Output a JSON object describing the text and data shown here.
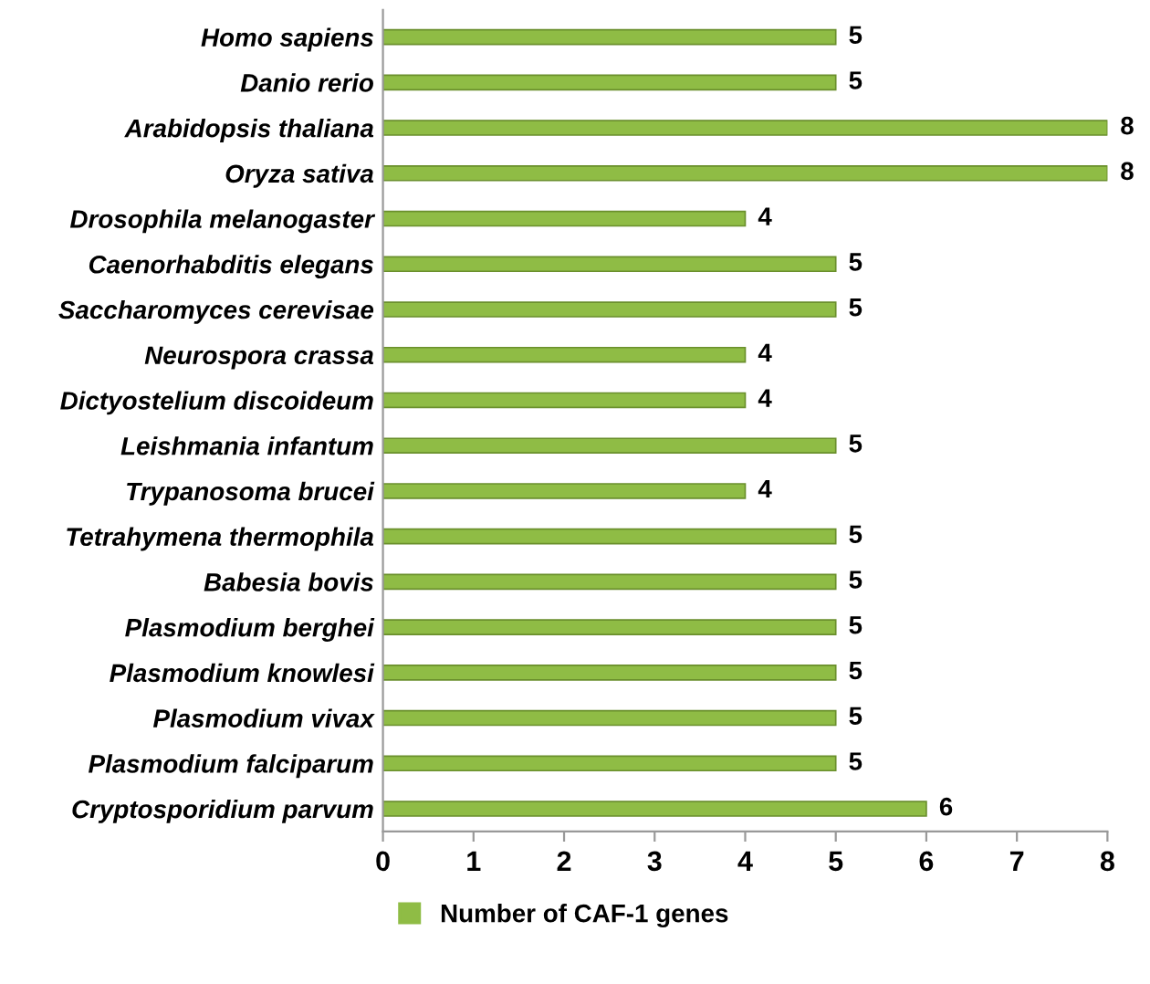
{
  "chart_data": {
    "type": "bar",
    "orientation": "horizontal",
    "categories": [
      "Homo sapiens",
      "Danio rerio",
      "Arabidopsis thaliana",
      "Oryza sativa",
      "Drosophila melanogaster",
      "Caenorhabditis elegans",
      "Saccharomyces cerevisae",
      "Neurospora crassa",
      "Dictyostelium discoideum",
      "Leishmania infantum",
      "Trypanosoma brucei",
      "Tetrahymena thermophila",
      "Babesia bovis",
      "Plasmodium berghei",
      "Plasmodium knowlesi",
      "Plasmodium vivax",
      "Plasmodium falciparum",
      "Cryptosporidium parvum"
    ],
    "series": [
      {
        "name": "Number of CAF-1 genes",
        "color": "#8fbc45",
        "values": [
          5,
          5,
          8,
          8,
          4,
          5,
          5,
          4,
          4,
          5,
          4,
          5,
          5,
          5,
          5,
          5,
          5,
          6
        ]
      }
    ],
    "xlim": [
      0,
      8
    ],
    "xticks": [
      0,
      1,
      2,
      3,
      4,
      5,
      6,
      7,
      8
    ],
    "data_labels": true,
    "legend": "bottom",
    "grid": false
  }
}
